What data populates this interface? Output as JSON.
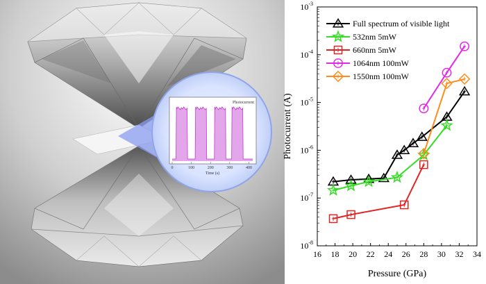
{
  "inset": {
    "title": "Photocurrent",
    "xlabel": "Time (s)",
    "xticks": [
      "0",
      "100",
      "200",
      "300",
      "400"
    ]
  },
  "colors": {
    "full": "#000000",
    "nm532": "#33dd22",
    "nm660": "#e52222",
    "nm1064": "#e22ae2",
    "nm1550": "#ff8c1a",
    "inset_signal": "#c03ad0"
  },
  "chart_data": {
    "type": "line",
    "xlabel": "Pressure (GPa)",
    "ylabel": "Photocurrent (A)",
    "xlim": [
      16,
      34
    ],
    "ylim": [
      1e-08,
      0.001
    ],
    "yscale": "log",
    "xticks": [
      16,
      18,
      20,
      22,
      24,
      26,
      28,
      30,
      32,
      34
    ],
    "yticks": [
      {
        "value": 1e-08,
        "label": "10",
        "exp": "-8"
      },
      {
        "value": 1e-07,
        "label": "10",
        "exp": "-7"
      },
      {
        "value": 1e-06,
        "label": "10",
        "exp": "-6"
      },
      {
        "value": 1e-05,
        "label": "10",
        "exp": "-5"
      },
      {
        "value": 0.0001,
        "label": "10",
        "exp": "-4"
      },
      {
        "value": 0.001,
        "label": "10",
        "exp": "-3"
      }
    ],
    "legend_position": "top-left",
    "series": [
      {
        "name": "Full spectrum of visible light",
        "marker": "triangle",
        "color_key": "full",
        "x": [
          17.8,
          19.8,
          21.8,
          23.5,
          25.0,
          25.8,
          26.8,
          27.8,
          30.6,
          32.6
        ],
        "y": [
          2.2e-07,
          2.4e-07,
          2.5e-07,
          2.6e-07,
          8e-07,
          1e-06,
          1.4e-06,
          1.9e-06,
          5e-06,
          1.7e-05
        ]
      },
      {
        "name": "532nm 5mW",
        "marker": "star",
        "color_key": "nm532",
        "x": [
          17.8,
          19.8,
          21.8,
          25.0,
          28.0,
          30.6
        ],
        "y": [
          1.45e-07,
          1.8e-07,
          2.2e-07,
          2.7e-07,
          8e-07,
          3.3e-06
        ]
      },
      {
        "name": "660nm 5mW",
        "marker": "square",
        "color_key": "nm660",
        "x": [
          17.8,
          19.8,
          25.8,
          28.0
        ],
        "y": [
          3.7e-08,
          4.5e-08,
          7.2e-08,
          5e-07
        ]
      },
      {
        "name": "1064nm 100mW",
        "marker": "circle",
        "color_key": "nm1064",
        "x": [
          28.0,
          30.6,
          32.6
        ],
        "y": [
          7.5e-06,
          4.2e-05,
          0.00015
        ]
      },
      {
        "name": "1550nm 100mW",
        "marker": "diamond",
        "color_key": "nm1550",
        "x": [
          28.0,
          30.6,
          32.6
        ],
        "y": [
          8.5e-07,
          2.5e-05,
          3.1e-05
        ]
      }
    ]
  }
}
